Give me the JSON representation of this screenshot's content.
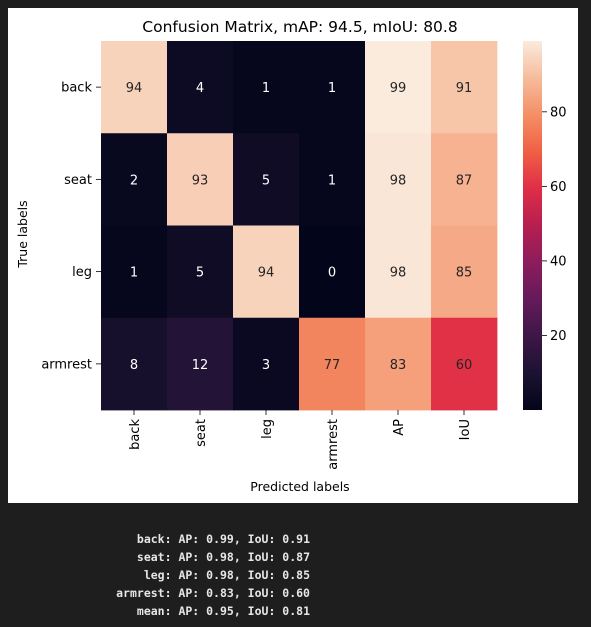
{
  "chart_data": {
    "type": "heatmap",
    "title": "Confusion Matrix, mAP:  94.5, mIoU:  80.8",
    "xlabel": "Predicted labels",
    "ylabel": "True labels",
    "x_categories": [
      "back",
      "seat",
      "leg",
      "armrest",
      "AP",
      "IoU"
    ],
    "y_categories": [
      "back",
      "seat",
      "leg",
      "armrest"
    ],
    "values": [
      [
        94,
        4,
        1,
        1,
        99,
        91
      ],
      [
        2,
        93,
        5,
        1,
        98,
        87
      ],
      [
        1,
        5,
        94,
        0,
        98,
        85
      ],
      [
        8,
        12,
        3,
        77,
        83,
        60
      ]
    ],
    "colorbar": {
      "range": [
        0,
        99
      ],
      "ticks": [
        20,
        40,
        60,
        80
      ],
      "colormap": "rocket"
    }
  },
  "console": {
    "lines": [
      "back: AP: 0.99, IoU: 0.91",
      "seat: AP: 0.98, IoU: 0.87",
      "leg: AP: 0.98, IoU: 0.85",
      "armrest: AP: 0.83, IoU: 0.60",
      "mean: AP: 0.95, IoU: 0.81"
    ]
  }
}
